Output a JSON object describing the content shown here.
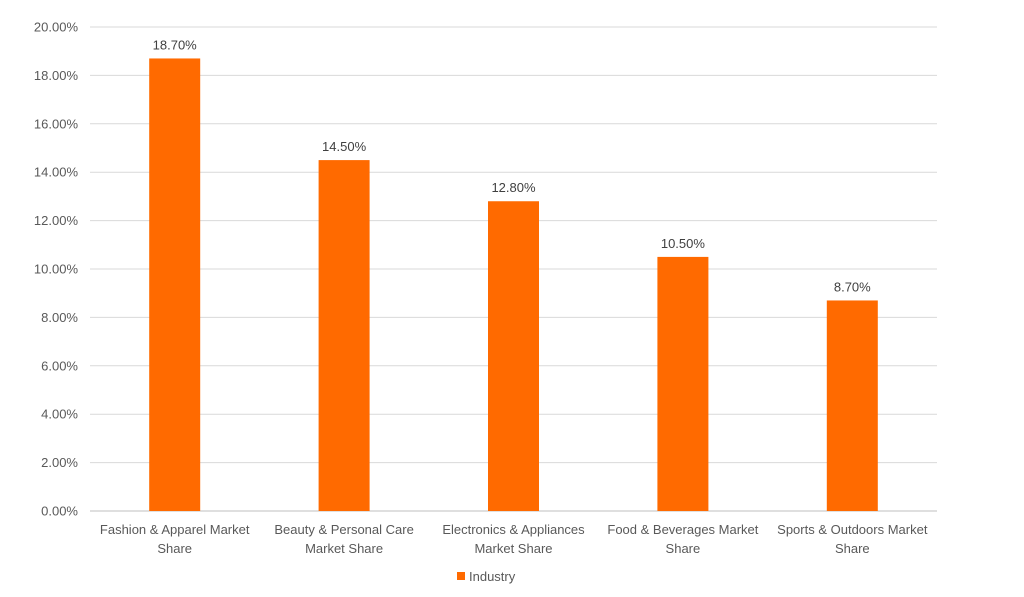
{
  "chart_data": {
    "type": "bar",
    "title": "",
    "xlabel": "",
    "ylabel": "",
    "categories": [
      [
        "Fashion & Apparel Market",
        "Share"
      ],
      [
        "Beauty & Personal Care",
        "Market Share"
      ],
      [
        "Electronics & Appliances",
        "Market Share"
      ],
      [
        "Food & Beverages Market",
        "Share"
      ],
      [
        "Sports & Outdoors Market",
        "Share"
      ]
    ],
    "series": [
      {
        "name": "Industry",
        "values": [
          18.7,
          14.5,
          12.8,
          10.5,
          8.7
        ],
        "labels": [
          "18.70%",
          "14.50%",
          "12.80%",
          "10.50%",
          "8.70%"
        ],
        "color": "#FF6A00"
      }
    ],
    "ylim": [
      0,
      20
    ],
    "yticks": [
      0,
      2,
      4,
      6,
      8,
      10,
      12,
      14,
      16,
      18,
      20
    ],
    "ytick_labels": [
      "0.00%",
      "2.00%",
      "4.00%",
      "6.00%",
      "8.00%",
      "10.00%",
      "12.00%",
      "14.00%",
      "16.00%",
      "18.00%",
      "20.00%"
    ],
    "grid": true,
    "legend_position": "bottom",
    "colors": {
      "gridline": "#D9D9D9",
      "axis": "#BFBFBF"
    }
  }
}
